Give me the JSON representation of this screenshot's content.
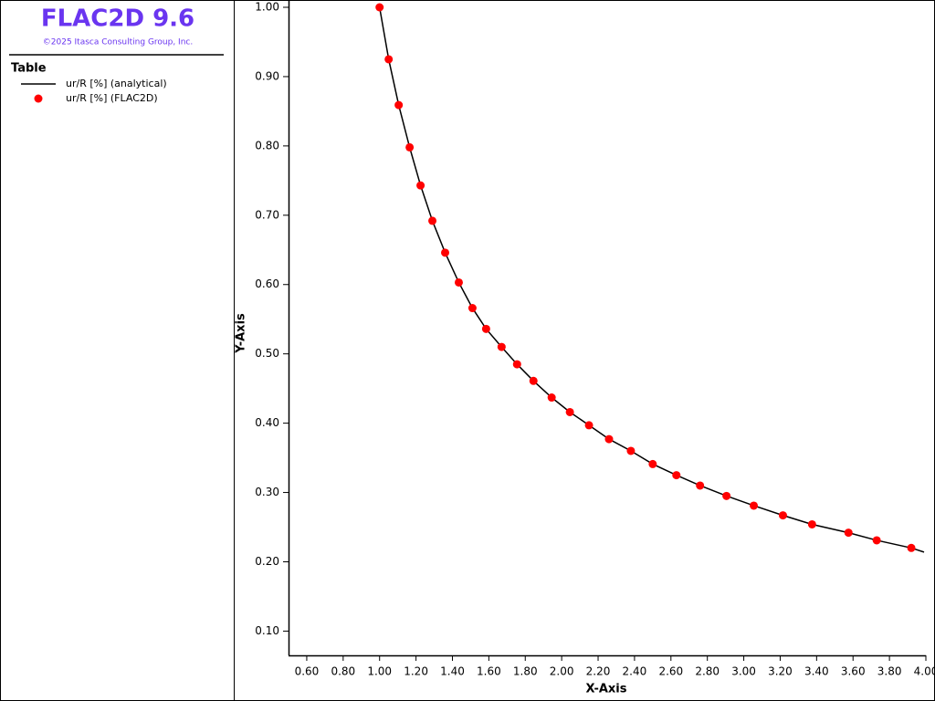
{
  "header": {
    "title": "FLAC2D 9.6",
    "copyright": "©2025 Itasca Consulting Group, Inc."
  },
  "chart_data": {
    "type": "line",
    "legend_title": "Table",
    "x_label": "X-Axis",
    "y_label": "Y-Axis",
    "xlim": [
      0.5,
      4.0
    ],
    "ylim": [
      0.065,
      1.0
    ],
    "xticks": [
      {
        "value": 0.6,
        "label": "0.60"
      },
      {
        "value": 0.8,
        "label": "0.80"
      },
      {
        "value": 1.0,
        "label": "1.00"
      },
      {
        "value": 1.2,
        "label": "1.20"
      },
      {
        "value": 1.4,
        "label": "1.40"
      },
      {
        "value": 1.6,
        "label": "1.60"
      },
      {
        "value": 1.8,
        "label": "1.80"
      },
      {
        "value": 2.0,
        "label": "2.00"
      },
      {
        "value": 2.2,
        "label": "2.20"
      },
      {
        "value": 2.4,
        "label": "2.40"
      },
      {
        "value": 2.6,
        "label": "2.60"
      },
      {
        "value": 2.8,
        "label": "2.80"
      },
      {
        "value": 3.0,
        "label": "3.00"
      },
      {
        "value": 3.2,
        "label": "3.20"
      },
      {
        "value": 3.4,
        "label": "3.40"
      },
      {
        "value": 3.6,
        "label": "3.60"
      },
      {
        "value": 3.8,
        "label": "3.80"
      },
      {
        "value": 4.0,
        "label": "4.00"
      }
    ],
    "yticks": [
      {
        "value": 0.1,
        "label": "0.10"
      },
      {
        "value": 0.2,
        "label": "0.20"
      },
      {
        "value": 0.3,
        "label": "0.30"
      },
      {
        "value": 0.4,
        "label": "0.40"
      },
      {
        "value": 0.5,
        "label": "0.50"
      },
      {
        "value": 0.6,
        "label": "0.60"
      },
      {
        "value": 0.7,
        "label": "0.70"
      },
      {
        "value": 0.8,
        "label": "0.80"
      },
      {
        "value": 0.9,
        "label": "0.90"
      },
      {
        "value": 1.0,
        "label": "1.00"
      }
    ],
    "series": [
      {
        "name": "ur/R [%] (analytical)",
        "color": "#000000",
        "style": "line",
        "x": [
          1.0,
          1.05,
          1.105,
          1.165,
          1.225,
          1.29,
          1.36,
          1.435,
          1.51,
          1.585,
          1.67,
          1.755,
          1.845,
          1.945,
          2.045,
          2.15,
          2.26,
          2.38,
          2.5,
          2.63,
          2.76,
          2.905,
          3.055,
          3.215,
          3.375,
          3.575,
          3.73,
          3.92,
          3.99
        ],
        "values": [
          1.0,
          0.925,
          0.859,
          0.798,
          0.743,
          0.692,
          0.646,
          0.603,
          0.566,
          0.536,
          0.51,
          0.485,
          0.461,
          0.437,
          0.416,
          0.397,
          0.377,
          0.36,
          0.341,
          0.325,
          0.31,
          0.295,
          0.281,
          0.267,
          0.254,
          0.242,
          0.231,
          0.22,
          0.214
        ]
      },
      {
        "name": "ur/R [%] (FLAC2D)",
        "color": "#ff0000",
        "style": "points",
        "x": [
          1.0,
          1.05,
          1.105,
          1.165,
          1.225,
          1.29,
          1.36,
          1.435,
          1.51,
          1.585,
          1.67,
          1.755,
          1.845,
          1.945,
          2.045,
          2.15,
          2.26,
          2.38,
          2.5,
          2.63,
          2.76,
          2.905,
          3.055,
          3.215,
          3.375,
          3.575,
          3.73,
          3.92
        ],
        "values": [
          1.0,
          0.925,
          0.859,
          0.798,
          0.743,
          0.692,
          0.646,
          0.603,
          0.566,
          0.536,
          0.51,
          0.485,
          0.461,
          0.437,
          0.416,
          0.397,
          0.377,
          0.36,
          0.341,
          0.325,
          0.31,
          0.295,
          0.281,
          0.267,
          0.254,
          0.242,
          0.231,
          0.22
        ]
      }
    ]
  }
}
